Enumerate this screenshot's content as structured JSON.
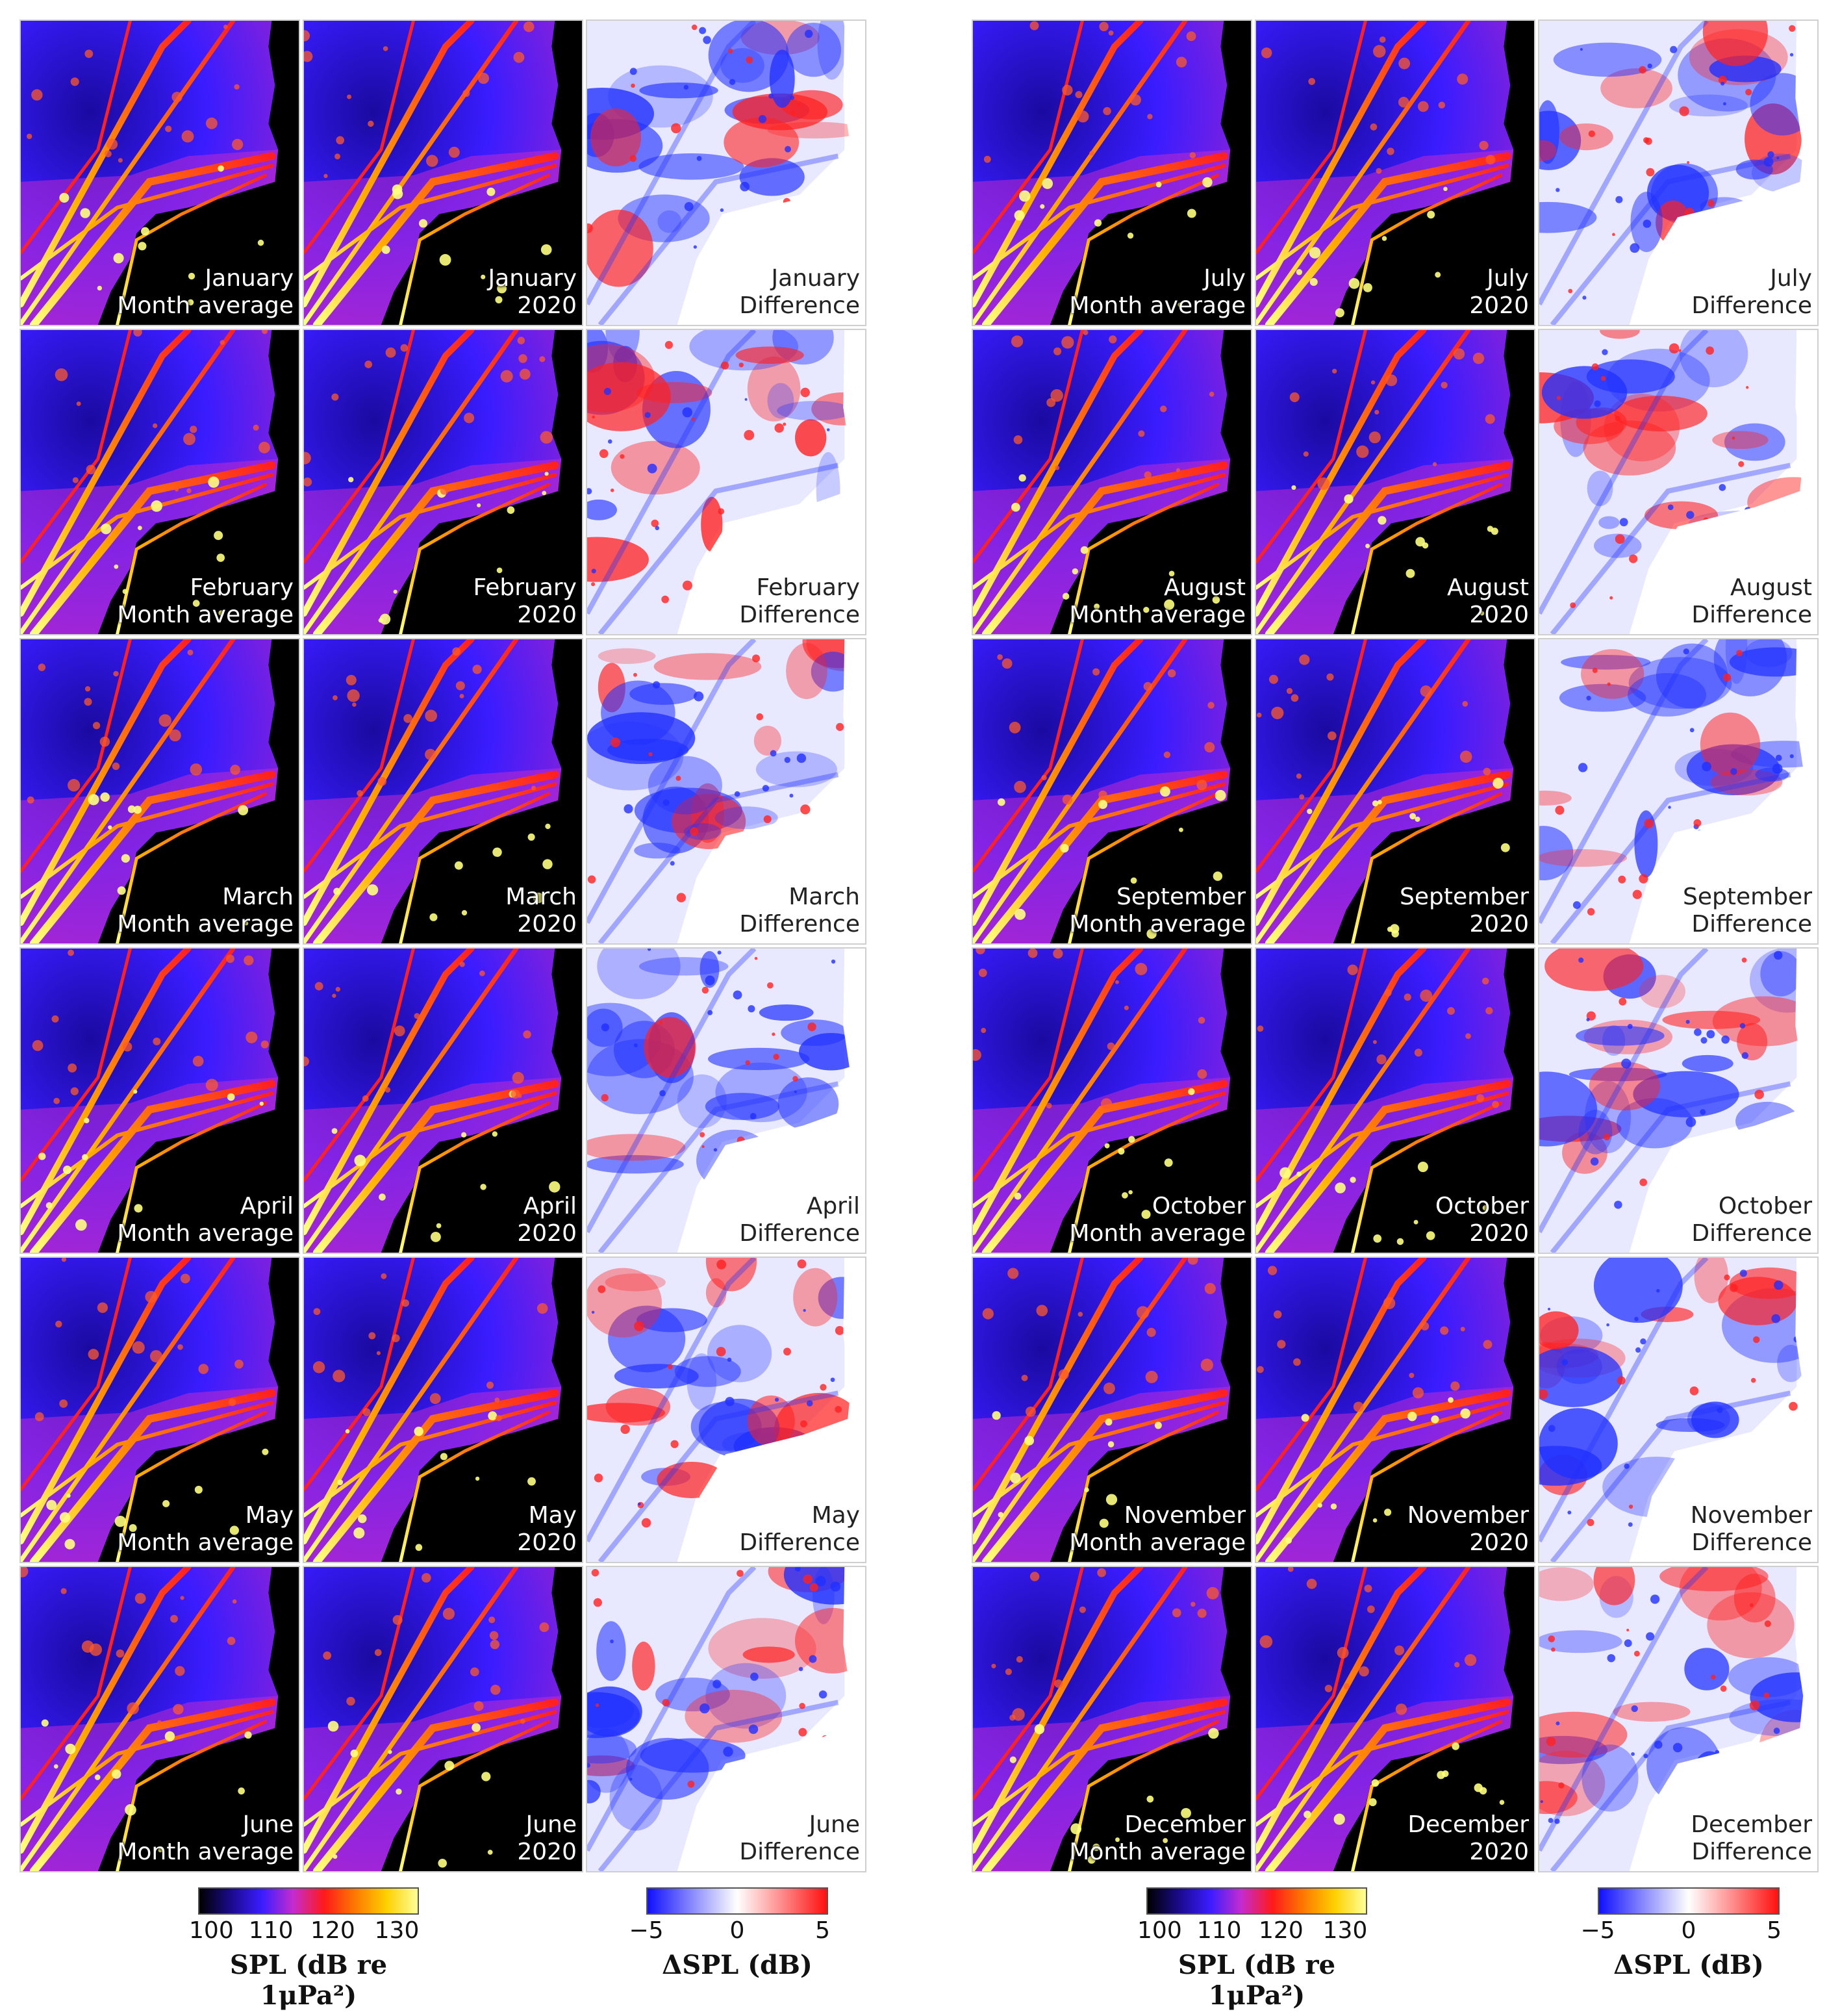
{
  "figure": {
    "left_half": {
      "rows": [
        {
          "month": "January",
          "avg_label": "January",
          "avg_sub": "Month average",
          "y2020_label": "January",
          "y2020_sub": "2020",
          "diff_label": "January",
          "diff_sub": "Difference"
        },
        {
          "month": "February",
          "avg_label": "February",
          "avg_sub": "Month average",
          "y2020_label": "February",
          "y2020_sub": "2020",
          "diff_label": "February",
          "diff_sub": "Difference"
        },
        {
          "month": "March",
          "avg_label": "March",
          "avg_sub": "Month average",
          "y2020_label": "March",
          "y2020_sub": "2020",
          "diff_label": "March",
          "diff_sub": "Difference"
        },
        {
          "month": "April",
          "avg_label": "April",
          "avg_sub": "Month average",
          "y2020_label": "April",
          "y2020_sub": "2020",
          "diff_label": "April",
          "diff_sub": "Difference"
        },
        {
          "month": "May",
          "avg_label": "May",
          "avg_sub": "Month average",
          "y2020_label": "May",
          "y2020_sub": "2020",
          "diff_label": "May",
          "diff_sub": "Difference"
        },
        {
          "month": "June",
          "avg_label": "June",
          "avg_sub": "Month average",
          "y2020_label": "June",
          "y2020_sub": "2020",
          "diff_label": "June",
          "diff_sub": "Difference"
        }
      ]
    },
    "right_half": {
      "rows": [
        {
          "month": "July",
          "avg_label": "July",
          "avg_sub": "Month average",
          "y2020_label": "July",
          "y2020_sub": "2020",
          "diff_label": "July",
          "diff_sub": "Difference"
        },
        {
          "month": "August",
          "avg_label": "August",
          "avg_sub": "Month average",
          "y2020_label": "August",
          "y2020_sub": "2020",
          "diff_label": "August",
          "diff_sub": "Difference"
        },
        {
          "month": "September",
          "avg_label": "September",
          "avg_sub": "Month average",
          "y2020_label": "September",
          "y2020_sub": "2020",
          "diff_label": "September",
          "diff_sub": "Difference"
        },
        {
          "month": "October",
          "avg_label": "October",
          "avg_sub": "Month average",
          "y2020_label": "October",
          "y2020_sub": "2020",
          "diff_label": "October",
          "diff_sub": "Difference"
        },
        {
          "month": "November",
          "avg_label": "November",
          "avg_sub": "Month average",
          "y2020_label": "November",
          "y2020_sub": "2020",
          "diff_label": "November",
          "diff_sub": "Difference"
        },
        {
          "month": "December",
          "avg_label": "December",
          "avg_sub": "Month average",
          "y2020_label": "December",
          "y2020_sub": "2020",
          "diff_label": "December",
          "diff_sub": "Difference"
        }
      ]
    },
    "colorbars": {
      "spl": {
        "ticks": [
          "100",
          "110",
          "120",
          "130"
        ],
        "range": [
          100,
          130
        ],
        "caption": "SPL (dB re 1μPa²)",
        "colors": [
          "#000000",
          "#1a0a8c",
          "#3a1cff",
          "#c52bd0",
          "#ff1a1a",
          "#ff7a00",
          "#ffd000",
          "#ffff99"
        ]
      },
      "dspl": {
        "ticks": [
          "−5",
          "0",
          "5"
        ],
        "range": [
          -5,
          5
        ],
        "caption": "ΔSPL (dB)",
        "colors": [
          "#1010ff",
          "#8a8aff",
          "#ffffff",
          "#ff8a8a",
          "#ff1010"
        ]
      }
    },
    "colors": {
      "land": "#000000",
      "sea_low": "#1a0aa0",
      "sea_mid": "#3a1cff",
      "lane_mid": "#ff2020",
      "lane_hi": "#ffb000",
      "lane_top": "#ffff80",
      "diff_blue": "#2030ff",
      "diff_red": "#ff2020"
    }
  }
}
